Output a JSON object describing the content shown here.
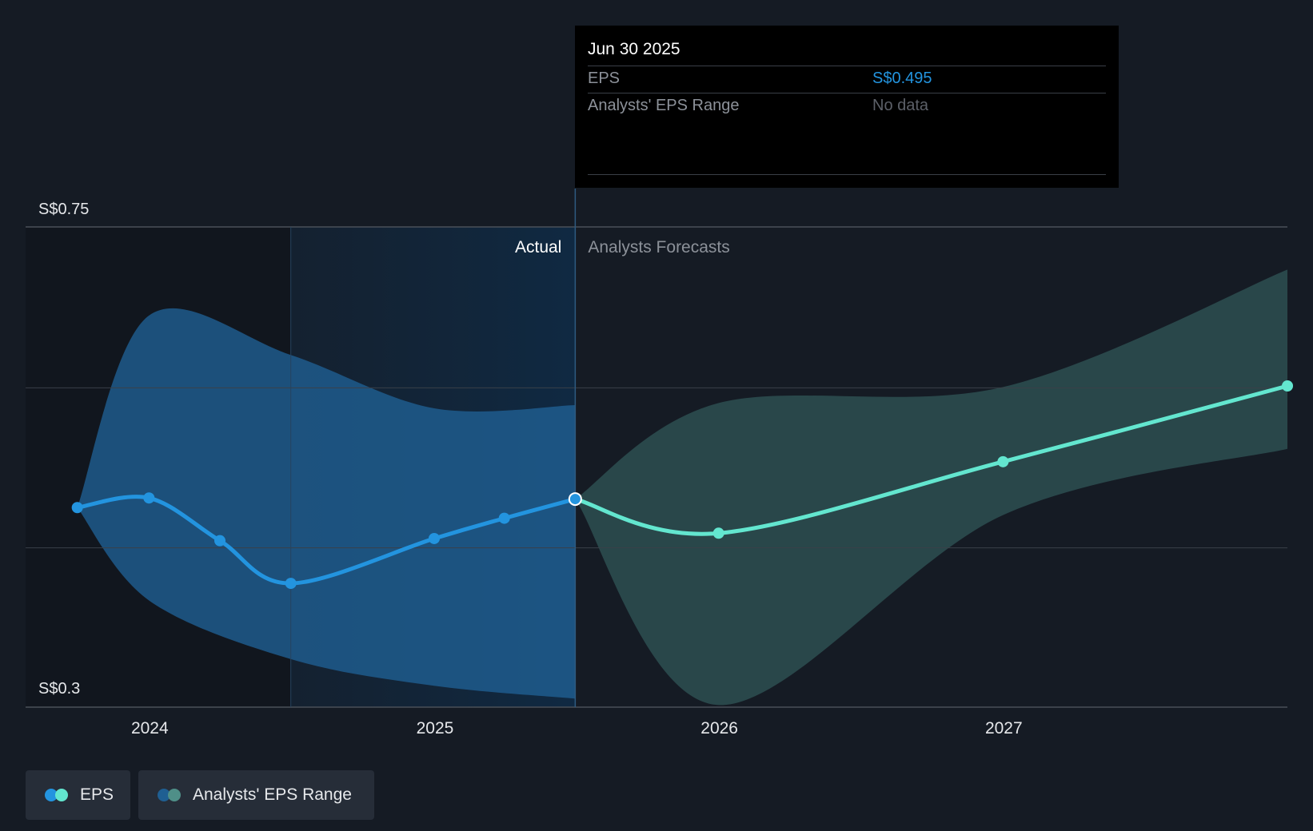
{
  "colors": {
    "background": "#151b24",
    "eps_actual": "#2394df",
    "eps_forecast": "#63e6cf",
    "range_actual": "#1f5f92",
    "range_forecast": "#2b4d4f",
    "tooltip_value": "#2394df"
  },
  "tooltip": {
    "date": "Jun 30 2025",
    "eps_label": "EPS",
    "eps_value": "S$0.495",
    "range_label": "Analysts' EPS Range",
    "range_value": "No data"
  },
  "chart_data": {
    "type": "line",
    "y_tick_labels": [
      "S$0.75",
      "S$0.3"
    ],
    "ylim": [
      0.3,
      0.75
    ],
    "x_tick_labels": [
      "2024",
      "2025",
      "2026",
      "2027"
    ],
    "region_labels": {
      "actual": "Actual",
      "forecast": "Analysts Forecasts"
    },
    "split_date": "2025-06-30",
    "grid": true,
    "legend_position": "bottom-left",
    "series": [
      {
        "name": "EPS",
        "segment": "actual",
        "points": [
          {
            "x": "2023-09-30",
            "y": 0.487
          },
          {
            "x": "2023-12-31",
            "y": 0.496
          },
          {
            "x": "2024-03-31",
            "y": 0.456
          },
          {
            "x": "2024-06-30",
            "y": 0.416
          },
          {
            "x": "2024-12-31",
            "y": 0.458
          },
          {
            "x": "2025-03-31",
            "y": 0.477
          },
          {
            "x": "2025-06-30",
            "y": 0.495
          }
        ]
      },
      {
        "name": "EPS",
        "segment": "forecast",
        "points": [
          {
            "x": "2025-06-30",
            "y": 0.495
          },
          {
            "x": "2025-12-31",
            "y": 0.463
          },
          {
            "x": "2026-12-31",
            "y": 0.53
          },
          {
            "x": "2027-12-31",
            "y": 0.601
          }
        ]
      }
    ],
    "range": {
      "name": "Analysts' EPS Range",
      "actual": [
        {
          "x": "2023-09-30",
          "low": 0.487,
          "high": 0.487
        },
        {
          "x": "2023-12-31",
          "low": 0.4,
          "high": 0.667
        },
        {
          "x": "2024-06-30",
          "low": 0.345,
          "high": 0.63
        },
        {
          "x": "2024-12-31",
          "low": 0.32,
          "high": 0.58
        },
        {
          "x": "2025-06-30",
          "low": 0.308,
          "high": 0.583
        }
      ],
      "forecast": [
        {
          "x": "2025-06-30",
          "low": 0.495,
          "high": 0.495
        },
        {
          "x": "2025-12-31",
          "low": 0.302,
          "high": 0.585
        },
        {
          "x": "2026-12-31",
          "low": 0.48,
          "high": 0.6
        },
        {
          "x": "2027-12-31",
          "low": 0.542,
          "high": 0.71
        }
      ]
    }
  },
  "legend": {
    "items": [
      {
        "label": "EPS"
      },
      {
        "label": "Analysts' EPS Range"
      }
    ]
  }
}
